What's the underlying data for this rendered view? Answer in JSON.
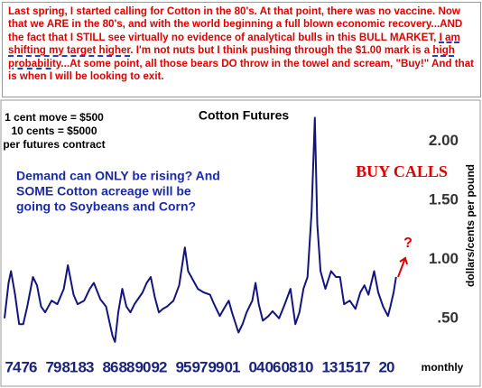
{
  "top_note": {
    "parts": [
      "Last spring, I started calling for Cotton in the 80's. At that point, there was no vaccine. Now that we ARE in the 80's, and with the world beginning a full blown economic recovery...AND the fact that I STILL see virtually no evidence of analytical bulls in this BULL MARKET, ",
      "I am shifting my target higher",
      ". I'm not nuts but I think pushing through the $1.00 mark is a ",
      "high probability",
      "...At some point, all those bears DO throw in the towel and scream, \"Buy!\" And that is when I will be looking to exit."
    ]
  },
  "chart_data": {
    "type": "line",
    "title": "Cotton Futures",
    "y_label": "dollars/cents per pound",
    "x_label": "monthly",
    "annotations": [
      "1 cent move = $500",
      "10 cents = $5000",
      "per futures contract",
      "Demand can ONLY be rising? And",
      "SOME Cotton acreage will be",
      "going to Soybeans and Corn?",
      "BUY CALLS",
      "?"
    ],
    "color": "#14147e",
    "x": [
      1973.0,
      1973.5,
      1973.8,
      1974.3,
      1974.8,
      1975.3,
      1975.8,
      1976.5,
      1977.0,
      1977.5,
      1978.0,
      1978.8,
      1979.5,
      1980.3,
      1980.8,
      1981.5,
      1982.0,
      1982.8,
      1983.5,
      1984.0,
      1984.8,
      1985.5,
      1986.3,
      1986.6,
      1987.0,
      1987.5,
      1988.0,
      1988.5,
      1989.0,
      1990.0,
      1990.5,
      1991.0,
      1991.5,
      1992.0,
      1992.5,
      1993.0,
      1993.8,
      1994.5,
      1995.2,
      1995.6,
      1996.0,
      1996.8,
      1997.5,
      1998.3,
      1998.8,
      1999.5,
      2000.0,
      2000.6,
      2001.0,
      2001.8,
      2002.3,
      2002.8,
      2003.5,
      2003.9,
      2004.3,
      2004.8,
      2005.5,
      2006.0,
      2006.8,
      2007.5,
      2008.2,
      2008.8,
      2009.3,
      2009.8,
      2010.3,
      2010.8,
      2011.2,
      2011.5,
      2011.9,
      2012.5,
      2013.2,
      2013.8,
      2014.3,
      2014.8,
      2015.5,
      2016.2,
      2016.8,
      2017.3,
      2017.8,
      2018.5,
      2019.0,
      2019.6,
      2020.2,
      2020.5,
      2020.9,
      2021.2
    ],
    "values": [
      0.5,
      0.8,
      0.9,
      0.7,
      0.45,
      0.45,
      0.6,
      0.85,
      0.78,
      0.6,
      0.55,
      0.65,
      0.62,
      0.75,
      0.95,
      0.7,
      0.62,
      0.65,
      0.75,
      0.8,
      0.66,
      0.6,
      0.35,
      0.3,
      0.55,
      0.75,
      0.6,
      0.55,
      0.62,
      0.72,
      0.8,
      0.85,
      0.68,
      0.55,
      0.58,
      0.6,
      0.65,
      0.78,
      1.1,
      0.9,
      0.85,
      0.75,
      0.72,
      0.7,
      0.62,
      0.52,
      0.58,
      0.65,
      0.55,
      0.38,
      0.45,
      0.55,
      0.65,
      0.8,
      0.62,
      0.48,
      0.52,
      0.56,
      0.5,
      0.62,
      0.75,
      0.45,
      0.55,
      0.75,
      0.85,
      1.4,
      2.2,
      1.3,
      0.9,
      0.75,
      0.9,
      0.85,
      0.85,
      0.62,
      0.65,
      0.58,
      0.72,
      0.78,
      0.7,
      0.9,
      0.72,
      0.6,
      0.52,
      0.6,
      0.72,
      0.85
    ],
    "xlim": [
      1973,
      2022
    ],
    "ylim": [
      0.2,
      2.28
    ],
    "xticks": [
      {
        "value": 1974,
        "label": "74"
      },
      {
        "value": 1976,
        "label": "76"
      },
      {
        "value": 1979,
        "label": "79"
      },
      {
        "value": 1981,
        "label": "81"
      },
      {
        "value": 1983,
        "label": "83"
      },
      {
        "value": 1986,
        "label": "86"
      },
      {
        "value": 1988,
        "label": "88"
      },
      {
        "value": 1990,
        "label": "90"
      },
      {
        "value": 1992,
        "label": "92"
      },
      {
        "value": 1995,
        "label": "95"
      },
      {
        "value": 1997,
        "label": "97"
      },
      {
        "value": 1999,
        "label": "99"
      },
      {
        "value": 2001,
        "label": "01"
      },
      {
        "value": 2004,
        "label": "04"
      },
      {
        "value": 2006,
        "label": "06"
      },
      {
        "value": 2008,
        "label": "08"
      },
      {
        "value": 2010,
        "label": "10"
      },
      {
        "value": 2013,
        "label": "13"
      },
      {
        "value": 2015,
        "label": "15"
      },
      {
        "value": 2017,
        "label": "17"
      },
      {
        "value": 2020,
        "label": "20"
      }
    ],
    "yticks": [
      {
        "value": 0.5,
        "label": ".50"
      },
      {
        "value": 1,
        "label": "1.00"
      },
      {
        "value": 1.5,
        "label": "1.50"
      },
      {
        "value": 2,
        "label": "2.00"
      }
    ],
    "grid": false
  }
}
